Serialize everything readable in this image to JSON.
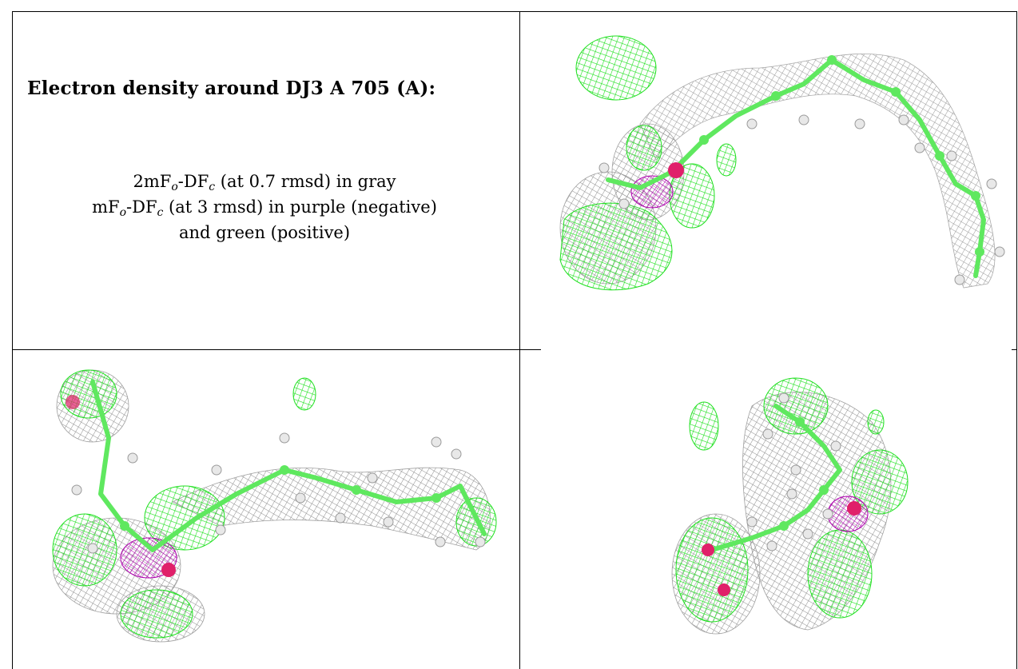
{
  "title": "Electron density around DJ3 A 705 (A):",
  "legend": {
    "line1": {
      "a": "2mF",
      "a_sub": "o",
      "b": "-DF",
      "b_sub": "c",
      "rest": " (at 0.7 rmsd) in gray"
    },
    "line2": {
      "a": "mF",
      "a_sub": "o",
      "b": "-DF",
      "b_sub": "c",
      "rest": " (at 3 rmsd) in purple (negative)"
    },
    "line3": "and green (positive)"
  },
  "colors": {
    "gray_mesh": "#9a9a9a",
    "negative_mesh": "#b000b0",
    "positive_mesh": "#1fe01f",
    "carbon": "#5fe85f",
    "hydrogen": "#e8e8e8",
    "oxygen": "#e0206a"
  },
  "panels": [
    "density-view-top-right",
    "density-view-bottom-left",
    "density-view-bottom-right"
  ]
}
